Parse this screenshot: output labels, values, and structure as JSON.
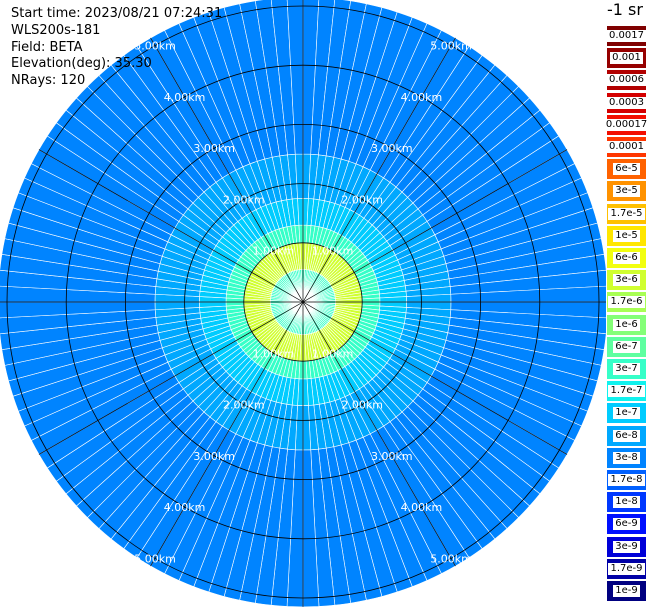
{
  "header": {
    "start_time": "Start time: 2023/08/21 07:24:31",
    "instrument": "WLS200s-181",
    "field": "Field: BETA",
    "elevation": "Elevation(deg): 35.30",
    "nrays": "NRays: 120"
  },
  "colorbar": {
    "unit": "-1 sr",
    "entries": [
      {
        "label": "0.0017",
        "color": "#7f0000"
      },
      {
        "label": "0.001",
        "color": "#960000"
      },
      {
        "label": "0.0006",
        "color": "#b20000"
      },
      {
        "label": "0.0003",
        "color": "#d40000"
      },
      {
        "label": "0.00017",
        "color": "#f20e00"
      },
      {
        "label": "0.0001",
        "color": "#ff3600"
      },
      {
        "label": "6e-5",
        "color": "#ff6200"
      },
      {
        "label": "3e-5",
        "color": "#ff9200"
      },
      {
        "label": "1.7e-5",
        "color": "#ffc000"
      },
      {
        "label": "1e-5",
        "color": "#ffe600"
      },
      {
        "label": "6e-6",
        "color": "#f2ff10"
      },
      {
        "label": "3e-6",
        "color": "#d0ff30"
      },
      {
        "label": "1.7e-6",
        "color": "#a8ff54"
      },
      {
        "label": "1e-6",
        "color": "#84ff78"
      },
      {
        "label": "6e-7",
        "color": "#5effa0"
      },
      {
        "label": "3e-7",
        "color": "#36ffc8"
      },
      {
        "label": "1.7e-7",
        "color": "#10f2ee"
      },
      {
        "label": "1e-7",
        "color": "#00ccff"
      },
      {
        "label": "6e-8",
        "color": "#00a8ff"
      },
      {
        "label": "3e-8",
        "color": "#0084ff"
      },
      {
        "label": "1.7e-8",
        "color": "#0060ff"
      },
      {
        "label": "1e-8",
        "color": "#0038ff"
      },
      {
        "label": "6e-9",
        "color": "#0010ff"
      },
      {
        "label": "3e-9",
        "color": "#0000d8"
      },
      {
        "label": "1.7e-9",
        "color": "#0000a6"
      },
      {
        "label": "1e-9",
        "color": "#000080"
      }
    ]
  },
  "chart_data": {
    "type": "heatmap",
    "projection": "polar",
    "title": "",
    "field": "BETA",
    "nrays": 120,
    "range_rings": [
      {
        "range_km": 1,
        "label": "1.00km"
      },
      {
        "range_km": 2,
        "label": "2.00km"
      },
      {
        "range_km": 3,
        "label": "3.00km"
      },
      {
        "range_km": 4,
        "label": "4.00km"
      },
      {
        "range_km": 5,
        "label": "5.00km"
      }
    ],
    "max_range_km": 5.15,
    "azimuth_spokes_deg": [
      0,
      30,
      60,
      90,
      120,
      150,
      180,
      210,
      240,
      270,
      300,
      330
    ],
    "colorbar_index_by_range": [
      {
        "range_km_max": 0.55,
        "index": 15
      },
      {
        "range_km_max": 1.0,
        "index": 11
      },
      {
        "range_km_max": 1.3,
        "index": 15
      },
      {
        "range_km_max": 1.75,
        "index": 17
      },
      {
        "range_km_max": 2.5,
        "index": 18
      },
      {
        "range_km_max": 5.15,
        "index": 19
      }
    ]
  }
}
